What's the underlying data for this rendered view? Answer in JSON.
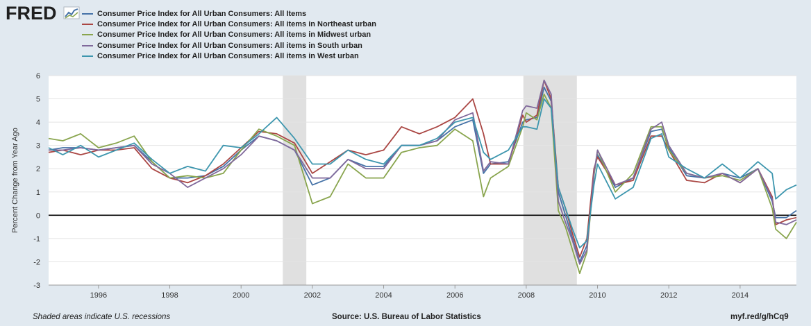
{
  "logo": {
    "text": "FRED",
    "icon": "fred-chart-icon"
  },
  "legend": [
    {
      "label": "Consumer Price Index for All Urban Consumers: All Items",
      "color": "#4572a7"
    },
    {
      "label": "Consumer Price Index for All Urban Consumers: All items in Northeast urban",
      "color": "#aa4643"
    },
    {
      "label": "Consumer Price Index for All Urban Consumers: All items in Midwest urban",
      "color": "#89a54e"
    },
    {
      "label": "Consumer Price Index for All Urban Consumers: All items in South urban",
      "color": "#80699b"
    },
    {
      "label": "Consumer Price Index for All Urban Consumers: All items in West urban",
      "color": "#3d96ae"
    }
  ],
  "footer": {
    "note": "Shaded areas indicate U.S. recessions",
    "source": "Source: U.S. Bureau of Labor Statistics",
    "link": "myf.red/g/hCq9"
  },
  "chart_data": {
    "type": "line",
    "ylabel": "Percent Change from Year Ago",
    "xlabel": "",
    "xlim": [
      1994.6,
      2015.58
    ],
    "ylim": [
      -3,
      6
    ],
    "x_ticks": [
      "1996",
      "1998",
      "2000",
      "2002",
      "2004",
      "2006",
      "2008",
      "2010",
      "2012",
      "2014"
    ],
    "y_ticks": [
      "-3",
      "-2",
      "-1",
      "0",
      "1",
      "2",
      "3",
      "4",
      "5",
      "6"
    ],
    "grid": true,
    "legend_position": "top",
    "recessions": [
      [
        2001.17,
        2001.83
      ],
      [
        2007.92,
        2009.42
      ]
    ],
    "x": [
      1994.6,
      1995.0,
      1995.5,
      1996.0,
      1996.5,
      1997.0,
      1997.5,
      1998.0,
      1998.5,
      1999.0,
      1999.5,
      2000.0,
      2000.5,
      2001.0,
      2001.5,
      2002.0,
      2002.5,
      2003.0,
      2003.5,
      2004.0,
      2004.5,
      2005.0,
      2005.5,
      2006.0,
      2006.5,
      2006.8,
      2007.0,
      2007.5,
      2007.9,
      2008.0,
      2008.3,
      2008.5,
      2008.7,
      2008.9,
      2009.1,
      2009.3,
      2009.5,
      2009.7,
      2009.9,
      2010.0,
      2010.5,
      2011.0,
      2011.5,
      2011.8,
      2012.0,
      2012.5,
      2013.0,
      2013.5,
      2014.0,
      2014.5,
      2014.9,
      2015.0,
      2015.3,
      2015.58
    ],
    "series": [
      {
        "name": "Consumer Price Index for All Urban Consumers: All Items",
        "values": [
          2.8,
          2.9,
          2.9,
          2.8,
          2.9,
          3.0,
          2.3,
          1.6,
          1.6,
          1.7,
          2.1,
          2.8,
          3.4,
          3.2,
          2.8,
          1.3,
          1.6,
          2.4,
          2.1,
          2.1,
          3.0,
          3.0,
          3.2,
          3.8,
          4.1,
          1.8,
          2.2,
          2.3,
          4.0,
          4.1,
          4.2,
          5.5,
          4.9,
          1.0,
          0.0,
          -1.0,
          -2.0,
          -1.3,
          1.8,
          2.6,
          1.2,
          1.6,
          3.6,
          3.7,
          2.9,
          1.7,
          1.6,
          1.8,
          1.6,
          2.0,
          0.6,
          -0.1,
          -0.1,
          0.2
        ]
      },
      {
        "name": "Consumer Price Index for All Urban Consumers: All items in Northeast urban",
        "values": [
          2.7,
          2.8,
          2.6,
          2.8,
          2.8,
          2.9,
          2.0,
          1.6,
          1.4,
          1.7,
          2.2,
          2.9,
          3.6,
          3.5,
          3.1,
          1.8,
          2.3,
          2.8,
          2.6,
          2.8,
          3.8,
          3.5,
          3.8,
          4.2,
          5.0,
          3.5,
          2.2,
          2.2,
          4.3,
          4.0,
          4.3,
          5.8,
          5.0,
          1.2,
          0.3,
          -0.8,
          -1.8,
          -1.0,
          2.0,
          2.5,
          1.3,
          1.5,
          3.4,
          3.4,
          2.8,
          1.5,
          1.4,
          1.8,
          1.4,
          2.0,
          0.8,
          -0.4,
          -0.2,
          -0.1
        ]
      },
      {
        "name": "Consumer Price Index for All Urban Consumers: All items in Midwest urban",
        "values": [
          3.3,
          3.2,
          3.5,
          2.9,
          3.1,
          3.4,
          2.3,
          1.6,
          1.7,
          1.6,
          1.8,
          2.8,
          3.7,
          3.4,
          3.0,
          0.5,
          0.8,
          2.2,
          1.6,
          1.6,
          2.7,
          2.9,
          3.0,
          3.7,
          3.2,
          0.8,
          1.6,
          2.1,
          3.8,
          4.4,
          4.1,
          5.2,
          4.6,
          0.2,
          -0.5,
          -1.5,
          -2.5,
          -1.6,
          1.7,
          2.8,
          1.0,
          1.8,
          3.8,
          3.8,
          2.8,
          1.8,
          1.6,
          1.7,
          1.5,
          2.0,
          0.3,
          -0.6,
          -1.0,
          -0.3
        ]
      },
      {
        "name": "Consumer Price Index for All Urban Consumers: All items in South urban",
        "values": [
          2.8,
          2.8,
          2.9,
          2.8,
          2.9,
          3.0,
          2.2,
          1.8,
          1.2,
          1.6,
          2.0,
          2.6,
          3.4,
          3.2,
          2.8,
          1.6,
          1.6,
          2.4,
          2.0,
          2.0,
          3.0,
          3.0,
          3.2,
          4.1,
          4.4,
          1.9,
          2.3,
          2.2,
          4.5,
          4.7,
          4.6,
          5.8,
          5.2,
          0.6,
          -0.3,
          -1.1,
          -2.1,
          -1.5,
          1.8,
          2.8,
          1.3,
          1.6,
          3.7,
          4.0,
          3.0,
          1.8,
          1.6,
          1.8,
          1.4,
          2.0,
          0.7,
          -0.3,
          -0.4,
          -0.2
        ]
      },
      {
        "name": "Consumer Price Index for All Urban Consumers: All items in West urban",
        "values": [
          2.9,
          2.6,
          3.0,
          2.5,
          2.8,
          3.1,
          2.4,
          1.8,
          2.1,
          1.9,
          3.0,
          2.9,
          3.5,
          4.2,
          3.3,
          2.2,
          2.2,
          2.8,
          2.4,
          2.2,
          3.0,
          3.0,
          3.3,
          4.0,
          4.2,
          2.7,
          2.4,
          2.8,
          3.8,
          3.8,
          3.7,
          5.0,
          4.6,
          1.2,
          0.3,
          -0.6,
          -1.4,
          -1.1,
          1.3,
          2.2,
          0.7,
          1.2,
          3.3,
          3.5,
          2.5,
          2.0,
          1.6,
          2.2,
          1.6,
          2.3,
          1.8,
          0.7,
          1.1,
          1.3
        ]
      }
    ]
  }
}
